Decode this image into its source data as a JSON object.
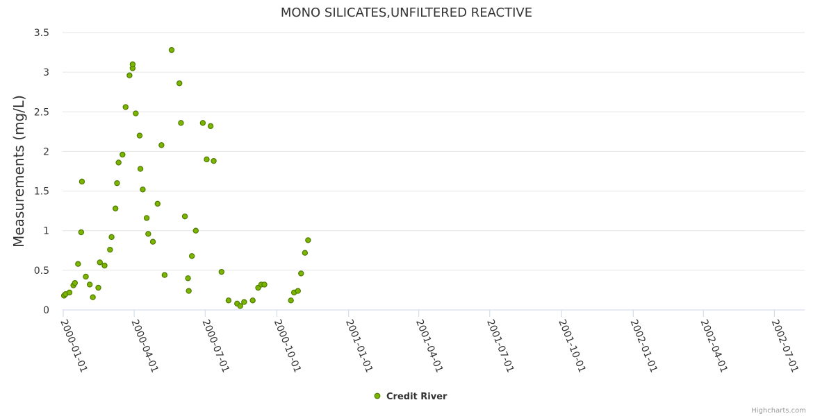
{
  "chart_data": {
    "type": "scatter",
    "title": "MONO SILICATES,UNFILTERED REACTIVE",
    "ylabel": "Measurements (mg/L)",
    "xlabel": "",
    "ylim": [
      0,
      3.5
    ],
    "yticks": [
      "0",
      "0.5",
      "1",
      "1.5",
      "2",
      "2.5",
      "3",
      "3.5"
    ],
    "xticks": [
      "2000-01-01",
      "2000-04-01",
      "2000-07-01",
      "2000-10-01",
      "2001-01-01",
      "2001-04-01",
      "2001-07-01",
      "2001-10-01",
      "2002-01-01",
      "2002-04-01",
      "2002-07-01"
    ],
    "grid": "horizontal",
    "legend": "bottom-center",
    "series": [
      {
        "name": "Credit River",
        "points": [
          [
            "2000-01-02",
            0.18
          ],
          [
            "2000-01-04",
            0.2
          ],
          [
            "2000-01-09",
            0.22
          ],
          [
            "2000-01-14",
            0.31
          ],
          [
            "2000-01-16",
            0.34
          ],
          [
            "2000-01-20",
            0.58
          ],
          [
            "2000-01-24",
            0.98
          ],
          [
            "2000-01-25",
            1.62
          ],
          [
            "2000-01-30",
            0.42
          ],
          [
            "2000-02-04",
            0.32
          ],
          [
            "2000-02-08",
            0.16
          ],
          [
            "2000-02-15",
            0.28
          ],
          [
            "2000-02-17",
            0.6
          ],
          [
            "2000-02-23",
            0.56
          ],
          [
            "2000-03-01",
            0.76
          ],
          [
            "2000-03-03",
            0.92
          ],
          [
            "2000-03-08",
            1.28
          ],
          [
            "2000-03-10",
            1.6
          ],
          [
            "2000-03-12",
            1.86
          ],
          [
            "2000-03-17",
            1.96
          ],
          [
            "2000-03-21",
            2.56
          ],
          [
            "2000-03-26",
            2.96
          ],
          [
            "2000-03-30",
            3.05
          ],
          [
            "2000-03-30",
            3.1
          ],
          [
            "2000-04-03",
            2.48
          ],
          [
            "2000-04-08",
            2.2
          ],
          [
            "2000-04-09",
            1.78
          ],
          [
            "2000-04-12",
            1.52
          ],
          [
            "2000-04-17",
            1.16
          ],
          [
            "2000-04-19",
            0.96
          ],
          [
            "2000-04-25",
            0.86
          ],
          [
            "2000-05-01",
            1.34
          ],
          [
            "2000-05-06",
            2.08
          ],
          [
            "2000-05-10",
            0.44
          ],
          [
            "2000-05-19",
            3.28
          ],
          [
            "2000-05-29",
            2.86
          ],
          [
            "2000-05-31",
            2.36
          ],
          [
            "2000-06-05",
            1.18
          ],
          [
            "2000-06-09",
            0.4
          ],
          [
            "2000-06-10",
            0.24
          ],
          [
            "2000-06-14",
            0.68
          ],
          [
            "2000-06-19",
            1.0
          ],
          [
            "2000-06-28",
            2.36
          ],
          [
            "2000-07-03",
            1.9
          ],
          [
            "2000-07-08",
            2.32
          ],
          [
            "2000-07-12",
            1.88
          ],
          [
            "2000-07-22",
            0.48
          ],
          [
            "2000-07-31",
            0.12
          ],
          [
            "2000-08-11",
            0.08
          ],
          [
            "2000-08-15",
            0.05
          ],
          [
            "2000-08-20",
            0.1
          ],
          [
            "2000-08-31",
            0.12
          ],
          [
            "2000-09-07",
            0.28
          ],
          [
            "2000-09-11",
            0.32
          ],
          [
            "2000-09-15",
            0.32
          ],
          [
            "2000-10-19",
            0.12
          ],
          [
            "2000-10-23",
            0.22
          ],
          [
            "2000-10-28",
            0.24
          ],
          [
            "2000-11-01",
            0.46
          ],
          [
            "2000-11-06",
            0.72
          ],
          [
            "2000-11-10",
            0.88
          ]
        ]
      }
    ],
    "colors": {
      "marker_fill": "#7cb500",
      "marker_stroke": "#4e7a00",
      "grid": "#e6e6e6",
      "axis": "#ccd6eb"
    }
  },
  "credits": "Highcharts.com"
}
